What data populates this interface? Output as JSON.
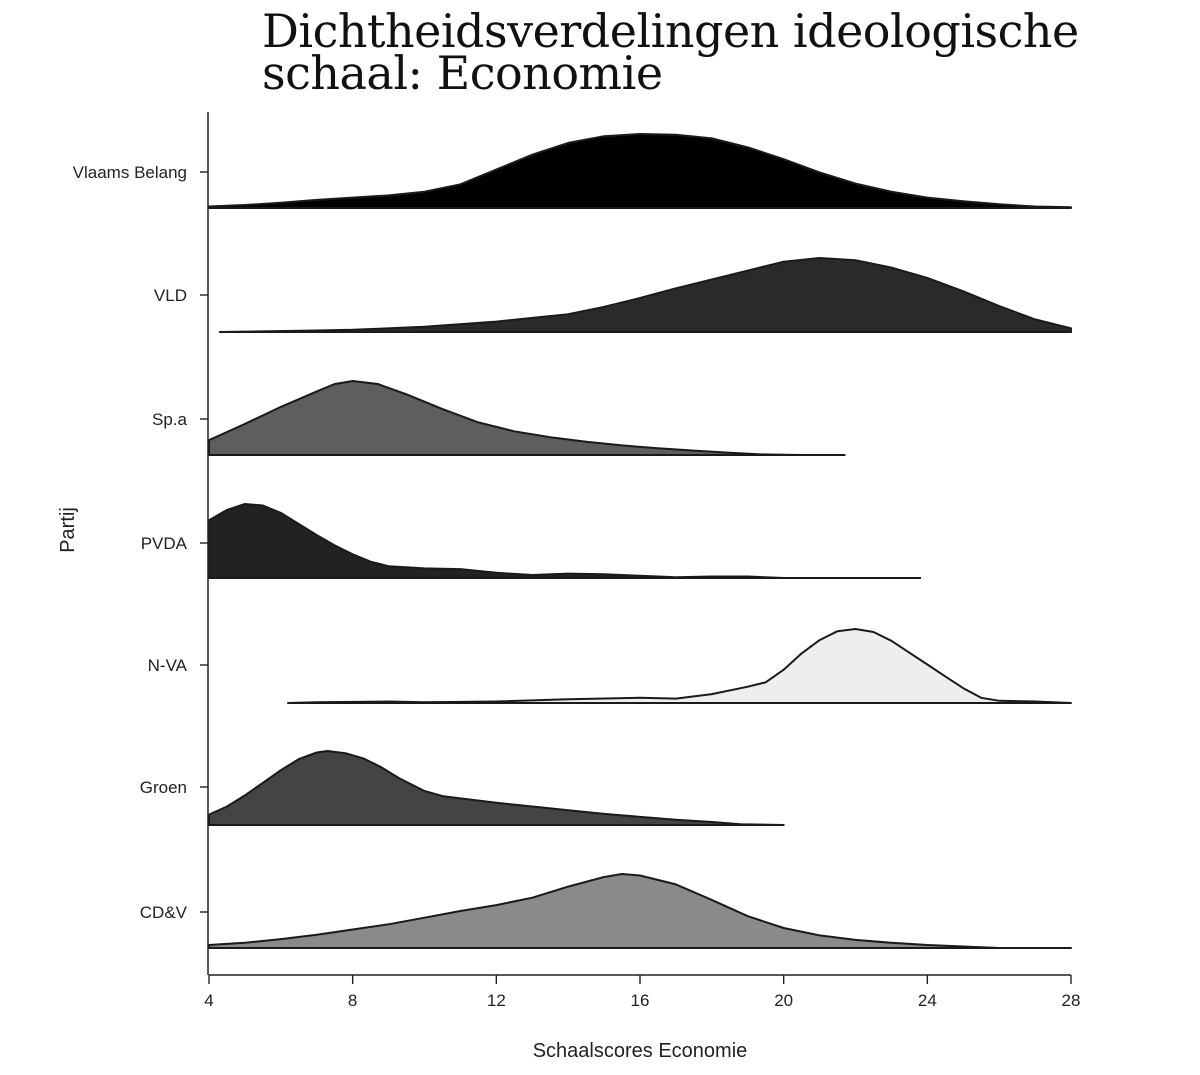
{
  "title_lines": [
    "Dichtheidsverdelingen ideologische",
    "schaal: Economie"
  ],
  "chart_data": {
    "type": "ridgeline",
    "xlabel": "Schaalscores Economie",
    "ylabel": "Partij",
    "xlim": [
      4,
      28
    ],
    "xticks": [
      4,
      8,
      12,
      16,
      20,
      24,
      28
    ],
    "series": [
      {
        "name": "Vlaams Belang",
        "color": "#000000",
        "range": [
          4,
          28
        ],
        "points": [
          [
            4,
            0.02
          ],
          [
            5,
            0.04
          ],
          [
            6,
            0.07
          ],
          [
            7,
            0.11
          ],
          [
            8,
            0.14
          ],
          [
            9,
            0.17
          ],
          [
            10,
            0.22
          ],
          [
            11,
            0.32
          ],
          [
            12,
            0.52
          ],
          [
            13,
            0.72
          ],
          [
            14,
            0.88
          ],
          [
            15,
            0.97
          ],
          [
            16,
            1.0
          ],
          [
            17,
            0.99
          ],
          [
            18,
            0.94
          ],
          [
            19,
            0.82
          ],
          [
            20,
            0.66
          ],
          [
            21,
            0.48
          ],
          [
            22,
            0.33
          ],
          [
            23,
            0.22
          ],
          [
            24,
            0.14
          ],
          [
            25,
            0.09
          ],
          [
            26,
            0.05
          ],
          [
            27,
            0.02
          ],
          [
            28,
            0.01
          ]
        ]
      },
      {
        "name": "VLD",
        "color": "#2a2a2a",
        "range": [
          4.3,
          28
        ],
        "points": [
          [
            4.3,
            0.0
          ],
          [
            7,
            0.02
          ],
          [
            8,
            0.03
          ],
          [
            10,
            0.07
          ],
          [
            12,
            0.14
          ],
          [
            14,
            0.24
          ],
          [
            15,
            0.34
          ],
          [
            16,
            0.46
          ],
          [
            17,
            0.59
          ],
          [
            18,
            0.71
          ],
          [
            19,
            0.83
          ],
          [
            20,
            0.95
          ],
          [
            21,
            1.0
          ],
          [
            22,
            0.97
          ],
          [
            23,
            0.87
          ],
          [
            24,
            0.73
          ],
          [
            25,
            0.55
          ],
          [
            26,
            0.35
          ],
          [
            27,
            0.17
          ],
          [
            28,
            0.05
          ]
        ]
      },
      {
        "name": "Sp.a",
        "color": "#5e5e5e",
        "range": [
          4,
          21.7
        ],
        "points": [
          [
            4,
            0.2
          ],
          [
            5,
            0.42
          ],
          [
            6,
            0.65
          ],
          [
            7,
            0.86
          ],
          [
            7.5,
            0.96
          ],
          [
            8,
            1.0
          ],
          [
            8.7,
            0.96
          ],
          [
            9.5,
            0.82
          ],
          [
            10.5,
            0.62
          ],
          [
            11.5,
            0.44
          ],
          [
            12.5,
            0.32
          ],
          [
            13.5,
            0.24
          ],
          [
            14.5,
            0.18
          ],
          [
            15.5,
            0.13
          ],
          [
            16.5,
            0.09
          ],
          [
            17.5,
            0.06
          ],
          [
            18.5,
            0.03
          ],
          [
            19.3,
            0.01
          ],
          [
            20.5,
            0.0
          ],
          [
            21.7,
            0.0
          ]
        ]
      },
      {
        "name": "PVDA",
        "color": "#222222",
        "range": [
          4,
          23.8
        ],
        "points": [
          [
            4,
            0.78
          ],
          [
            4.5,
            0.92
          ],
          [
            5,
            1.0
          ],
          [
            5.5,
            0.98
          ],
          [
            6,
            0.88
          ],
          [
            6.5,
            0.73
          ],
          [
            7,
            0.58
          ],
          [
            7.5,
            0.44
          ],
          [
            8,
            0.32
          ],
          [
            8.5,
            0.22
          ],
          [
            9,
            0.16
          ],
          [
            10,
            0.13
          ],
          [
            11,
            0.12
          ],
          [
            12,
            0.07
          ],
          [
            13,
            0.04
          ],
          [
            14,
            0.06
          ],
          [
            15,
            0.05
          ],
          [
            16,
            0.03
          ],
          [
            17,
            0.01
          ],
          [
            18,
            0.02
          ],
          [
            19,
            0.02
          ],
          [
            20,
            0.0
          ],
          [
            21,
            0.0
          ],
          [
            22,
            0.0
          ],
          [
            23.8,
            0.0
          ]
        ]
      },
      {
        "name": "N-VA",
        "color": "#eeeeee",
        "range": [
          6.2,
          28
        ],
        "points": [
          [
            6.2,
            0.0
          ],
          [
            7,
            0.01
          ],
          [
            9,
            0.02
          ],
          [
            10,
            0.01
          ],
          [
            12,
            0.02
          ],
          [
            14,
            0.05
          ],
          [
            16,
            0.07
          ],
          [
            17,
            0.06
          ],
          [
            18,
            0.12
          ],
          [
            19,
            0.22
          ],
          [
            19.5,
            0.28
          ],
          [
            20,
            0.45
          ],
          [
            20.5,
            0.67
          ],
          [
            21,
            0.85
          ],
          [
            21.5,
            0.97
          ],
          [
            22,
            1.0
          ],
          [
            22.5,
            0.96
          ],
          [
            23,
            0.84
          ],
          [
            23.5,
            0.68
          ],
          [
            24,
            0.52
          ],
          [
            24.5,
            0.36
          ],
          [
            25,
            0.2
          ],
          [
            25.5,
            0.07
          ],
          [
            26,
            0.03
          ],
          [
            27,
            0.02
          ],
          [
            28,
            0.0
          ]
        ]
      },
      {
        "name": "Groen",
        "color": "#444444",
        "range": [
          4,
          20
        ],
        "points": [
          [
            4,
            0.14
          ],
          [
            4.5,
            0.25
          ],
          [
            5,
            0.4
          ],
          [
            5.5,
            0.57
          ],
          [
            6,
            0.74
          ],
          [
            6.5,
            0.89
          ],
          [
            7,
            0.98
          ],
          [
            7.3,
            1.0
          ],
          [
            7.8,
            0.97
          ],
          [
            8.3,
            0.9
          ],
          [
            8.8,
            0.78
          ],
          [
            9.3,
            0.63
          ],
          [
            10,
            0.46
          ],
          [
            10.5,
            0.39
          ],
          [
            11,
            0.36
          ],
          [
            12,
            0.3
          ],
          [
            13,
            0.25
          ],
          [
            14,
            0.2
          ],
          [
            15,
            0.15
          ],
          [
            16,
            0.11
          ],
          [
            17,
            0.07
          ],
          [
            18,
            0.04
          ],
          [
            18.8,
            0.01
          ],
          [
            20,
            0.0
          ]
        ]
      },
      {
        "name": "CD&V",
        "color": "#8a8a8a",
        "range": [
          4,
          28
        ],
        "points": [
          [
            4,
            0.04
          ],
          [
            5,
            0.07
          ],
          [
            6,
            0.12
          ],
          [
            7,
            0.18
          ],
          [
            8,
            0.25
          ],
          [
            9,
            0.32
          ],
          [
            10,
            0.41
          ],
          [
            11,
            0.5
          ],
          [
            12,
            0.58
          ],
          [
            13,
            0.68
          ],
          [
            14,
            0.83
          ],
          [
            15,
            0.96
          ],
          [
            15.5,
            1.0
          ],
          [
            16,
            0.98
          ],
          [
            17,
            0.86
          ],
          [
            18,
            0.65
          ],
          [
            19,
            0.43
          ],
          [
            20,
            0.27
          ],
          [
            21,
            0.17
          ],
          [
            22,
            0.11
          ],
          [
            23,
            0.07
          ],
          [
            24,
            0.04
          ],
          [
            25,
            0.02
          ],
          [
            25.5,
            0.01
          ],
          [
            26,
            0.0
          ],
          [
            28,
            0.0
          ]
        ]
      }
    ]
  }
}
